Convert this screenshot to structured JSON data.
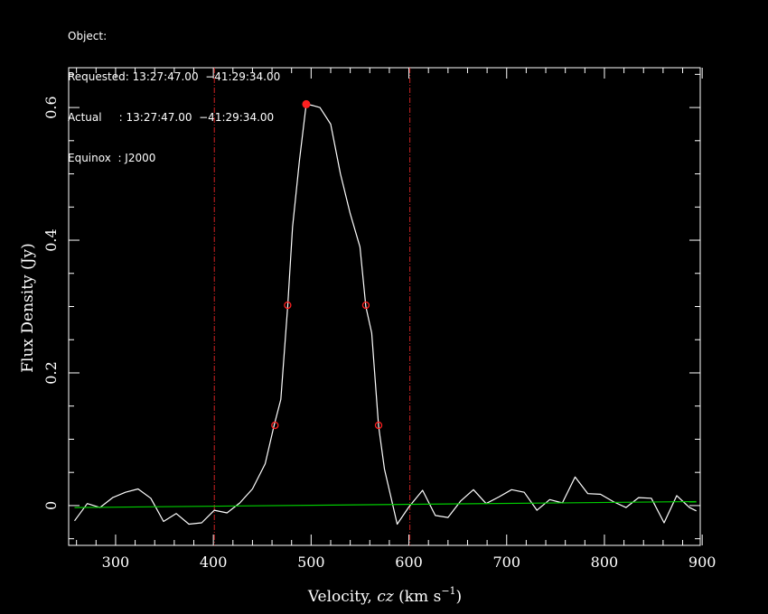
{
  "header": {
    "line1": "Object:",
    "line2": "Requested: 13:27:47.00  −41:29:34.00",
    "line3": "Actual     : 13:27:47.00  −41:29:34.00",
    "line4": "Equinox  : J2000"
  },
  "chart_data": {
    "type": "line",
    "title": "",
    "xlabel": "Velocity, cz (km s",
    "xlabel_italic": "cz",
    "xlabel_sup": "−1",
    "ylabel": "Flux Density (Jy)",
    "xlim": [
      252,
      898
    ],
    "ylim": [
      -0.06,
      0.66
    ],
    "x_ticks": [
      300,
      400,
      500,
      600,
      700,
      800,
      900
    ],
    "x_tick_labels": [
      "300",
      "400",
      "500",
      "600",
      "700",
      "800",
      "900"
    ],
    "y_ticks": [
      0,
      0.2,
      0.4,
      0.6
    ],
    "y_tick_labels": [
      "0",
      "0.2",
      "0.4",
      "0.6"
    ],
    "grid": false,
    "series": [
      {
        "role": "spectrum",
        "color": "#ffffff",
        "x": [
          258,
          271,
          284,
          297,
          310,
          323,
          336,
          349,
          362,
          375,
          388,
          401,
          414,
          427,
          440,
          453,
          462,
          469,
          476,
          481,
          488,
          495,
          502,
          509,
          520,
          530,
          540,
          550,
          556,
          562,
          569,
          575,
          588,
          600,
          614,
          627,
          640,
          653,
          666,
          679,
          692,
          705,
          718,
          731,
          744,
          757,
          770,
          783,
          796,
          809,
          822,
          835,
          848,
          861,
          874,
          887,
          894
        ],
        "y": [
          -0.023,
          0.003,
          -0.003,
          0.012,
          0.02,
          0.025,
          0.011,
          -0.024,
          -0.012,
          -0.028,
          -0.026,
          -0.007,
          -0.011,
          0.004,
          0.025,
          0.063,
          0.12,
          0.16,
          0.3,
          0.42,
          0.52,
          0.605,
          0.603,
          0.6,
          0.575,
          0.5,
          0.44,
          0.39,
          0.3,
          0.26,
          0.12,
          0.055,
          -0.028,
          -0.002,
          0.023,
          -0.015,
          -0.018,
          0.007,
          0.024,
          0.003,
          0.013,
          0.024,
          0.02,
          -0.007,
          0.009,
          0.004,
          0.043,
          0.018,
          0.017,
          0.006,
          -0.003,
          0.012,
          0.011,
          -0.026,
          0.015,
          -0.003,
          -0.008
        ]
      },
      {
        "role": "baseline",
        "color": "#00cc00",
        "x": [
          258,
          894
        ],
        "y": [
          -0.003,
          0.006
        ]
      }
    ],
    "vlines": [
      {
        "x": 401,
        "color": "#cc2222"
      },
      {
        "x": 601,
        "color": "#cc2222"
      }
    ],
    "peak_marker": {
      "x": 495,
      "y": 0.605,
      "color": "#ff2020"
    },
    "width_markers": [
      {
        "x": 476,
        "y": 0.302
      },
      {
        "x": 556,
        "y": 0.302
      },
      {
        "x": 463,
        "y": 0.121
      },
      {
        "x": 569,
        "y": 0.121
      }
    ],
    "width_marker_color": "#ff2020"
  }
}
